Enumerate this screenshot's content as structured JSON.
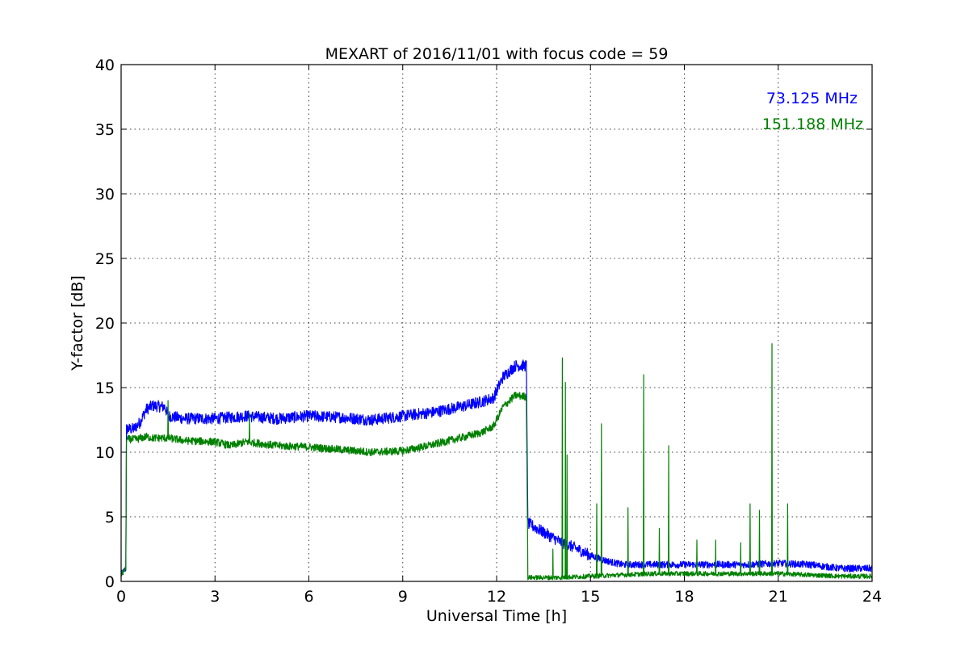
{
  "chart_data": {
    "type": "line",
    "title": "MEXART of 2016/11/01 with focus code = 59",
    "xlabel": "Universal Time [h]",
    "ylabel": "Y-factor [dB]",
    "xlim": [
      0,
      24
    ],
    "ylim": [
      0,
      40
    ],
    "xticks": [
      "0",
      "3",
      "6",
      "9",
      "12",
      "15",
      "18",
      "21",
      "24"
    ],
    "yticks": [
      "0",
      "5",
      "10",
      "15",
      "20",
      "25",
      "30",
      "35",
      "40"
    ],
    "grid": true,
    "legend_placement": "top-right",
    "series": [
      {
        "name": "73.125 MHz",
        "color": "#0000ff",
        "noise": 0.45,
        "points": [
          [
            0.0,
            0.5
          ],
          [
            0.15,
            1.0
          ],
          [
            0.17,
            11.8
          ],
          [
            0.4,
            11.8
          ],
          [
            0.6,
            12.3
          ],
          [
            0.8,
            13.3
          ],
          [
            1.0,
            13.6
          ],
          [
            1.4,
            13.5
          ],
          [
            1.5,
            12.8
          ],
          [
            2.0,
            12.6
          ],
          [
            3.0,
            12.6
          ],
          [
            4.0,
            12.8
          ],
          [
            5.0,
            12.6
          ],
          [
            6.0,
            12.8
          ],
          [
            7.0,
            12.7
          ],
          [
            8.0,
            12.5
          ],
          [
            9.0,
            12.8
          ],
          [
            10.0,
            13.1
          ],
          [
            11.0,
            13.6
          ],
          [
            11.5,
            13.9
          ],
          [
            11.9,
            14.2
          ],
          [
            12.2,
            15.8
          ],
          [
            12.6,
            16.7
          ],
          [
            12.95,
            16.7
          ],
          [
            13.0,
            4.5
          ],
          [
            13.5,
            3.8
          ],
          [
            14.0,
            3.1
          ],
          [
            14.5,
            2.6
          ],
          [
            15.0,
            2.0
          ],
          [
            15.5,
            1.6
          ],
          [
            16.0,
            1.3
          ],
          [
            17.0,
            1.3
          ],
          [
            18.0,
            1.3
          ],
          [
            19.0,
            1.3
          ],
          [
            20.0,
            1.3
          ],
          [
            21.0,
            1.4
          ],
          [
            22.0,
            1.3
          ],
          [
            23.0,
            1.0
          ],
          [
            24.0,
            1.0
          ]
        ],
        "spikes": []
      },
      {
        "name": "151.188 MHz",
        "color": "#008000",
        "noise": 0.3,
        "points": [
          [
            0.0,
            0.5
          ],
          [
            0.15,
            1.0
          ],
          [
            0.17,
            11.0
          ],
          [
            0.5,
            11.0
          ],
          [
            0.8,
            11.2
          ],
          [
            1.0,
            11.1
          ],
          [
            1.5,
            11.1
          ],
          [
            2.0,
            10.9
          ],
          [
            3.0,
            10.8
          ],
          [
            3.5,
            10.5
          ],
          [
            4.0,
            10.8
          ],
          [
            5.0,
            10.5
          ],
          [
            6.0,
            10.4
          ],
          [
            7.0,
            10.2
          ],
          [
            8.0,
            10.0
          ],
          [
            9.0,
            10.1
          ],
          [
            10.0,
            10.6
          ],
          [
            11.0,
            11.2
          ],
          [
            11.5,
            11.5
          ],
          [
            11.9,
            12.0
          ],
          [
            12.2,
            13.5
          ],
          [
            12.6,
            14.4
          ],
          [
            12.95,
            14.3
          ],
          [
            13.0,
            0.3
          ],
          [
            14.0,
            0.3
          ],
          [
            15.0,
            0.4
          ],
          [
            16.0,
            0.5
          ],
          [
            17.0,
            0.6
          ],
          [
            18.0,
            0.6
          ],
          [
            19.0,
            0.6
          ],
          [
            20.0,
            0.6
          ],
          [
            21.0,
            0.6
          ],
          [
            22.0,
            0.5
          ],
          [
            23.0,
            0.4
          ],
          [
            24.0,
            0.4
          ]
        ],
        "spikes": [
          [
            1.5,
            14.0
          ],
          [
            4.1,
            13.0
          ],
          [
            13.8,
            2.5
          ],
          [
            14.1,
            17.3
          ],
          [
            14.2,
            15.4
          ],
          [
            14.25,
            9.8
          ],
          [
            15.2,
            6.0
          ],
          [
            15.35,
            12.2
          ],
          [
            16.2,
            5.7
          ],
          [
            16.7,
            16.0
          ],
          [
            17.2,
            4.1
          ],
          [
            17.5,
            10.5
          ],
          [
            18.4,
            3.2
          ],
          [
            19.0,
            3.2
          ],
          [
            19.8,
            3.0
          ],
          [
            20.1,
            6.0
          ],
          [
            20.4,
            5.5
          ],
          [
            20.8,
            18.4
          ],
          [
            21.3,
            6.0
          ]
        ]
      }
    ]
  }
}
